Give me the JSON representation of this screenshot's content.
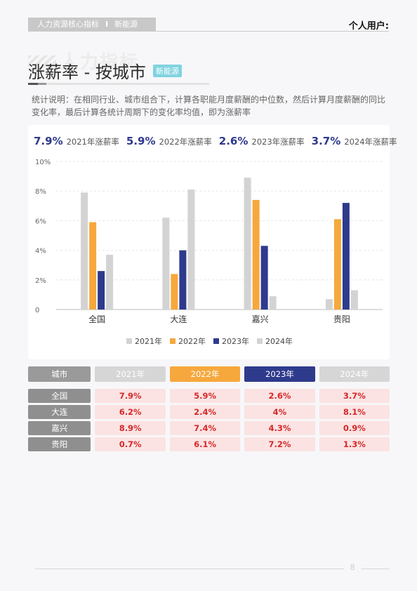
{
  "header": {
    "tag_left": "人力资源核心指标",
    "tag_sep": "I",
    "tag_right": "新能源",
    "user": "个人用户:"
  },
  "watermark": "人力指标",
  "title": "涨薪率 - 按城市",
  "title_badge": "新能源",
  "description": "统计说明：在相同行业、城市组合下，计算各职能月度薪酬的中位数，然后计算月度薪酬的同比变化率，最后计算各统计周期下的变化率均值，即为涨薪率",
  "kpis": [
    {
      "value": "7.9%",
      "label": "2021年涨薪率"
    },
    {
      "value": "5.9%",
      "label": "2022年涨薪率"
    },
    {
      "value": "2.6%",
      "label": "2023年涨薪率"
    },
    {
      "value": "3.7%",
      "label": "2024年涨薪率"
    }
  ],
  "chart_data": {
    "type": "bar",
    "categories": [
      "全国",
      "大连",
      "嘉兴",
      "贵阳"
    ],
    "series": [
      {
        "name": "2021年",
        "color": "#d3d3d3",
        "values": [
          7.9,
          6.2,
          8.9,
          0.7
        ]
      },
      {
        "name": "2022年",
        "color": "#f6a83c",
        "values": [
          5.9,
          2.4,
          7.4,
          6.1
        ]
      },
      {
        "name": "2023年",
        "color": "#2e3a8c",
        "values": [
          2.6,
          4.0,
          4.3,
          7.2
        ]
      },
      {
        "name": "2024年",
        "color": "#d3d3d3",
        "values": [
          3.7,
          8.1,
          0.9,
          1.3
        ]
      }
    ],
    "ylim": [
      0,
      10
    ],
    "yticks": [
      "0",
      "2%",
      "4%",
      "6%",
      "8%",
      "10%"
    ],
    "grid": true,
    "legend": "bottom"
  },
  "table": {
    "headers": [
      "城市",
      "2021年",
      "2022年",
      "2023年",
      "2024年"
    ],
    "rows": [
      [
        "全国",
        "7.9%",
        "5.9%",
        "2.6%",
        "3.7%"
      ],
      [
        "大连",
        "6.2%",
        "2.4%",
        "4%",
        "8.1%"
      ],
      [
        "嘉兴",
        "8.9%",
        "7.4%",
        "4.3%",
        "0.9%"
      ],
      [
        "贵阳",
        "0.7%",
        "6.1%",
        "7.2%",
        "1.3%"
      ]
    ]
  },
  "page_number": "8"
}
